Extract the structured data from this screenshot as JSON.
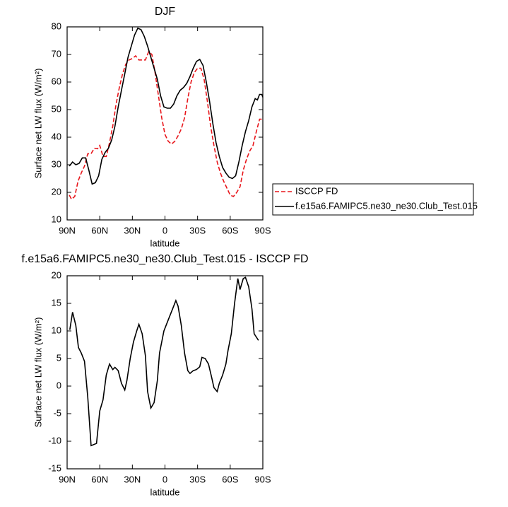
{
  "chart_data": [
    {
      "type": "line",
      "title": "DJF",
      "xlabel": "latitude",
      "ylabel": "Surface net LW flux (W/m²)",
      "xlim": [
        90,
        -90
      ],
      "ylim": [
        10,
        80
      ],
      "xticks": [
        {
          "value": 90,
          "label": "90N"
        },
        {
          "value": 60,
          "label": "60N"
        },
        {
          "value": 30,
          "label": "30N"
        },
        0,
        {
          "value": -30,
          "label": "30S"
        },
        {
          "value": -60,
          "label": "60S"
        },
        {
          "value": -90,
          "label": "90S"
        }
      ],
      "yticks": [
        10,
        20,
        30,
        40,
        50,
        60,
        70,
        80
      ],
      "legend": "right",
      "series": [
        {
          "name": "ISCCP FD",
          "color": "#e8161b",
          "dash": true,
          "x": [
            88,
            86,
            83,
            80,
            77,
            74,
            71,
            68,
            65,
            62,
            60,
            57,
            54,
            51,
            48,
            45,
            42,
            39,
            36,
            33,
            30,
            27,
            24,
            21,
            18,
            15,
            12,
            9,
            6,
            3,
            0,
            -3,
            -6,
            -9,
            -12,
            -15,
            -18,
            -21,
            -24,
            -27,
            -30,
            -33,
            -36,
            -39,
            -42,
            -45,
            -48,
            -51,
            -54,
            -57,
            -60,
            -63,
            -66,
            -69,
            -72,
            -75,
            -78,
            -81,
            -84,
            -87,
            -90
          ],
          "values": [
            19,
            17.5,
            18.5,
            24,
            27,
            29.5,
            34,
            34,
            36,
            35.8,
            37,
            33,
            33,
            38,
            44,
            52,
            58,
            63,
            66.5,
            68,
            68.5,
            69.5,
            68,
            68,
            68,
            71,
            70,
            63,
            55,
            47,
            41,
            38.5,
            37.5,
            38.5,
            40.5,
            43,
            47,
            54,
            60,
            63.5,
            65,
            65,
            61,
            53,
            44,
            37,
            31,
            27,
            24,
            21.5,
            19,
            18.5,
            20,
            22,
            28,
            32,
            35,
            37,
            42,
            46.5,
            46.5
          ]
        },
        {
          "name": "f.e15a6.FAMIPC5.ne30_ne30.Club_Test.015",
          "color": "#000000",
          "dash": false,
          "x": [
            88,
            85,
            82,
            79,
            76,
            73,
            70,
            67,
            64,
            61,
            58,
            55,
            52,
            49,
            46,
            43,
            40,
            37,
            34,
            31,
            28,
            25,
            22,
            19,
            16,
            13,
            10,
            7,
            4,
            1,
            -2,
            -5,
            -8,
            -11,
            -14,
            -17,
            -20,
            -23,
            -26,
            -29,
            -32,
            -35,
            -38,
            -41,
            -44,
            -47,
            -50,
            -53,
            -56,
            -59,
            -62,
            -65,
            -68,
            -71,
            -74,
            -77,
            -80,
            -83,
            -85,
            -87,
            -89,
            -90
          ],
          "values": [
            29.5,
            31,
            30,
            30.5,
            32.5,
            32.5,
            28,
            23,
            23.5,
            26,
            32,
            34.5,
            36,
            39,
            44,
            51,
            57,
            63,
            69,
            73,
            77,
            79.5,
            79,
            76.5,
            73,
            69,
            65,
            61,
            55,
            51,
            50.5,
            50.5,
            52,
            55,
            57,
            58,
            59.5,
            62,
            65,
            67.5,
            68.2,
            66,
            60,
            53,
            45,
            38,
            33,
            29,
            27,
            25.5,
            25,
            26,
            31,
            37,
            42,
            46,
            51,
            54,
            53.5,
            55.5,
            55.5,
            54.5
          ]
        }
      ]
    },
    {
      "type": "line",
      "title": "f.e15a6.FAMIPC5.ne30_ne30.Club_Test.015 - ISCCP FD",
      "xlabel": "latitude",
      "ylabel": "Surface net LW flux (W/m²)",
      "xlim": [
        90,
        -90
      ],
      "ylim": [
        -15,
        20
      ],
      "xticks": [
        {
          "value": 90,
          "label": "90N"
        },
        {
          "value": 60,
          "label": "60N"
        },
        {
          "value": 30,
          "label": "30N"
        },
        0,
        {
          "value": -30,
          "label": "30S"
        },
        {
          "value": -60,
          "label": "60S"
        },
        {
          "value": -90,
          "label": "90S"
        }
      ],
      "yticks": [
        -15,
        -10,
        -5,
        0,
        5,
        10,
        15,
        20
      ],
      "series": [
        {
          "color": "#000000",
          "dash": false,
          "x": [
            87.5,
            85,
            82,
            79.6,
            77,
            74,
            71,
            68,
            63,
            60,
            57,
            54,
            51,
            48,
            46,
            43,
            40,
            37,
            35,
            32,
            29,
            26,
            24,
            21,
            18,
            16,
            13,
            10,
            7,
            5,
            1,
            -3,
            -7,
            -10,
            -12,
            -15,
            -18,
            -21,
            -23,
            -26,
            -29,
            -32,
            -34,
            -37,
            -40,
            -43,
            -45,
            -48,
            -50,
            -53,
            -56,
            -58,
            -61,
            -64,
            -67,
            -69,
            -72,
            -74,
            -77,
            -80,
            -82,
            -86
          ],
          "values": [
            10.2,
            13.4,
            11,
            7,
            6,
            4.5,
            -2,
            -10.8,
            -10.4,
            -4.5,
            -2.5,
            2,
            4,
            3,
            3.4,
            2.8,
            0.5,
            -0.7,
            1,
            5,
            8,
            10,
            11.2,
            9.5,
            5.5,
            -1,
            -4,
            -3,
            1,
            6,
            10,
            12,
            14,
            15.5,
            14.5,
            11,
            6,
            2.8,
            2.3,
            2.8,
            3,
            3.5,
            5.2,
            5,
            4,
            1.5,
            -0.3,
            -1,
            0.5,
            2,
            4,
            6.5,
            9.5,
            15,
            19.5,
            17.5,
            19.5,
            19.7,
            18,
            14,
            9.5,
            8.3
          ]
        }
      ]
    }
  ]
}
